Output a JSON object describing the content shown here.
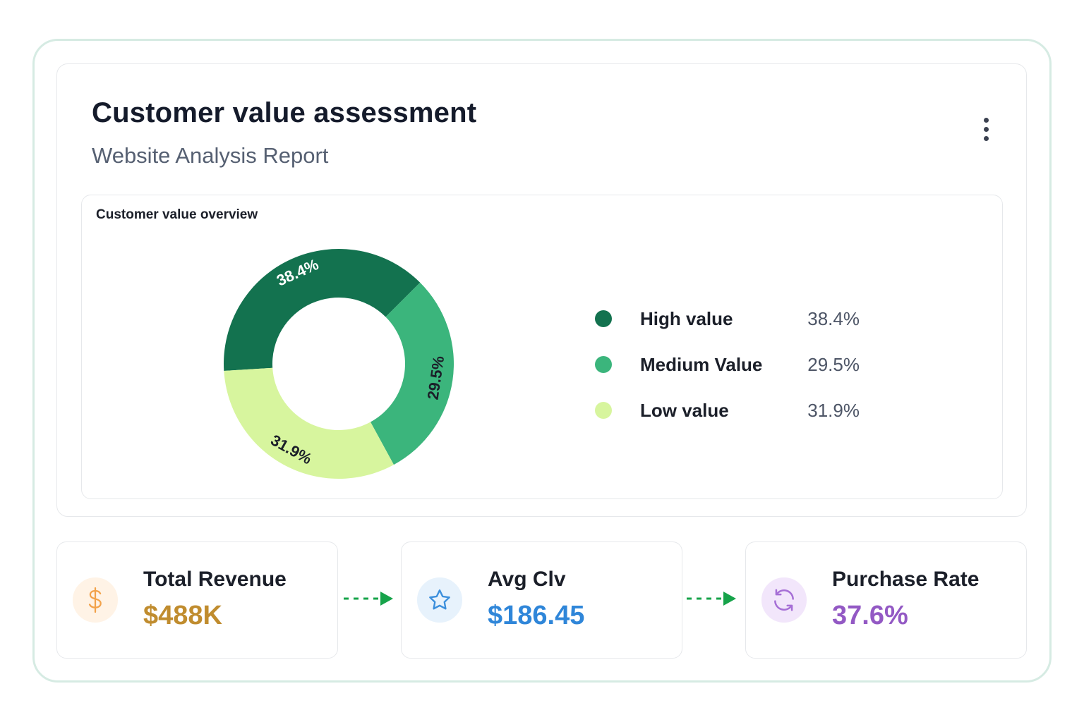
{
  "header": {
    "title": "Customer value assessment",
    "subtitle": "Website Analysis Report",
    "menu_icon": "more-vertical-icon"
  },
  "chart_section": {
    "title": "Customer value overview"
  },
  "chart_data": {
    "type": "pie",
    "donut": true,
    "categories": [
      "High value",
      "Medium Value",
      "Low value"
    ],
    "values": [
      38.4,
      29.5,
      31.9
    ],
    "labels": [
      "38.4%",
      "29.5%",
      "31.9%"
    ],
    "colors": [
      "#13724f",
      "#3bb57c",
      "#d7f59e"
    ],
    "legend_position": "right"
  },
  "legend": [
    {
      "name": "High value",
      "value": "38.4%",
      "color": "#13724f"
    },
    {
      "name": "Medium Value",
      "value": "29.5%",
      "color": "#3bb57c"
    },
    {
      "name": "Low value",
      "value": "31.9%",
      "color": "#d7f59e"
    }
  ],
  "kpis": [
    {
      "label": "Total Revenue",
      "value": "$488K",
      "icon": "dollar-sign-icon",
      "color": "#c08c2e",
      "icon_bg": "#fff3e6",
      "icon_color": "#f2a24a"
    },
    {
      "label": "Avg Clv",
      "value": "$186.45",
      "icon": "star-icon",
      "color": "#2f86d9",
      "icon_bg": "#e7f2fc",
      "icon_color": "#3c8fdc"
    },
    {
      "label": "Purchase Rate",
      "value": "37.6%",
      "icon": "refresh-icon",
      "color": "#9359c4",
      "icon_bg": "#f2e6fb",
      "icon_color": "#a66fd6"
    }
  ],
  "arrow_color": "#16a34a"
}
